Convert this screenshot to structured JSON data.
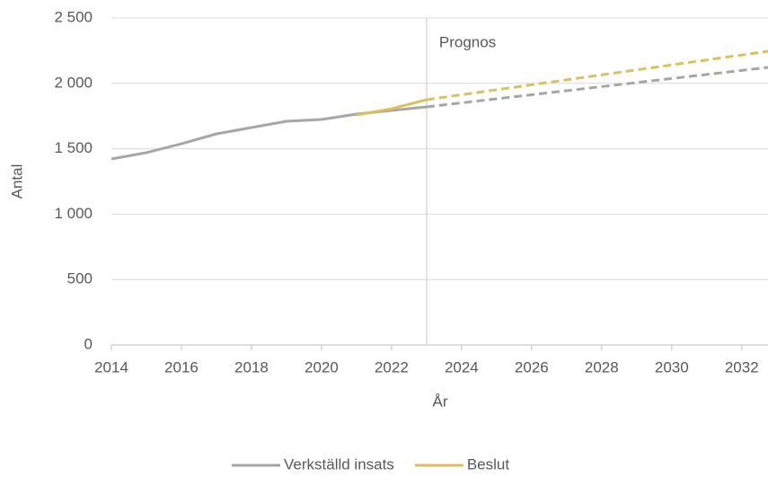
{
  "chart_data": {
    "type": "line",
    "x": [
      2014,
      2015,
      2016,
      2017,
      2018,
      2019,
      2020,
      2021,
      2022,
      2023,
      2024,
      2025,
      2026,
      2027,
      2028,
      2029,
      2030,
      2031,
      2032,
      2033
    ],
    "series": [
      {
        "name": "Verkställd insats",
        "color": "#a6a6a6",
        "values": [
          1422,
          1470,
          1538,
          1614,
          1662,
          1710,
          1724,
          1765,
          1793,
          1820,
          1851,
          1882,
          1913,
          1944,
          1975,
          2006,
          2037,
          2068,
          2099,
          2130
        ]
      },
      {
        "name": "Beslut",
        "color": "#dcc15b",
        "values": [
          null,
          null,
          null,
          null,
          null,
          null,
          null,
          1758,
          1806,
          1875,
          1913,
          1951,
          1989,
          2027,
          2065,
          2103,
          2141,
          2179,
          2217,
          2255
        ]
      }
    ],
    "xlabel": "År",
    "ylabel": "Antal",
    "xlim": [
      2014,
      2032.75
    ],
    "xticks": [
      2014,
      2016,
      2018,
      2020,
      2022,
      2024,
      2026,
      2028,
      2030,
      2032
    ],
    "ylim": [
      0,
      2500
    ],
    "yticks": [
      0,
      500,
      {
        "value": 1000,
        "label": "1 000"
      },
      {
        "value": 1500,
        "label": "1 500"
      },
      {
        "value": 2000,
        "label": "2 000"
      },
      {
        "value": 2500,
        "label": "2 500"
      }
    ],
    "grid": true,
    "legend": "bottom",
    "annotations": [
      {
        "text": "Prognos",
        "x": 2023
      }
    ]
  }
}
